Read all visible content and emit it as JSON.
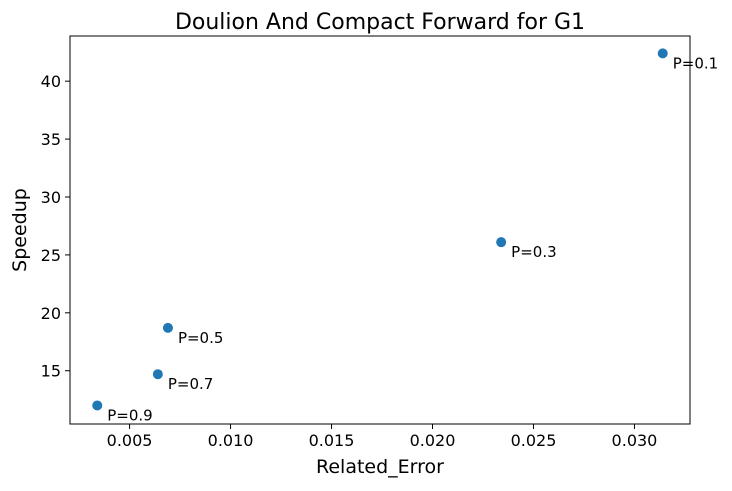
{
  "chart_data": {
    "type": "scatter",
    "title": "Doulion And Compact Forward for G1",
    "xlabel": "Related_Error",
    "ylabel": "Speedup",
    "xlim": [
      0.00205,
      0.03275
    ],
    "ylim": [
      10.4,
      43.9
    ],
    "grid": false,
    "legend": "none",
    "point_color": "#1f77b4",
    "x_ticks": [
      {
        "value": 0.005,
        "label": "0.005"
      },
      {
        "value": 0.01,
        "label": "0.010"
      },
      {
        "value": 0.015,
        "label": "0.015"
      },
      {
        "value": 0.02,
        "label": "0.020"
      },
      {
        "value": 0.025,
        "label": "0.025"
      },
      {
        "value": 0.03,
        "label": "0.030"
      }
    ],
    "y_ticks": [
      {
        "value": 15,
        "label": "15"
      },
      {
        "value": 20,
        "label": "20"
      },
      {
        "value": 25,
        "label": "25"
      },
      {
        "value": 30,
        "label": "30"
      },
      {
        "value": 35,
        "label": "35"
      },
      {
        "value": 40,
        "label": "40"
      }
    ],
    "points": [
      {
        "x": 0.0314,
        "y": 42.4,
        "label": "P=0.1"
      },
      {
        "x": 0.0234,
        "y": 26.1,
        "label": "P=0.3"
      },
      {
        "x": 0.0069,
        "y": 18.7,
        "label": "P=0.5"
      },
      {
        "x": 0.0064,
        "y": 14.7,
        "label": "P=0.7"
      },
      {
        "x": 0.0034,
        "y": 12.0,
        "label": "P=0.9"
      }
    ]
  }
}
